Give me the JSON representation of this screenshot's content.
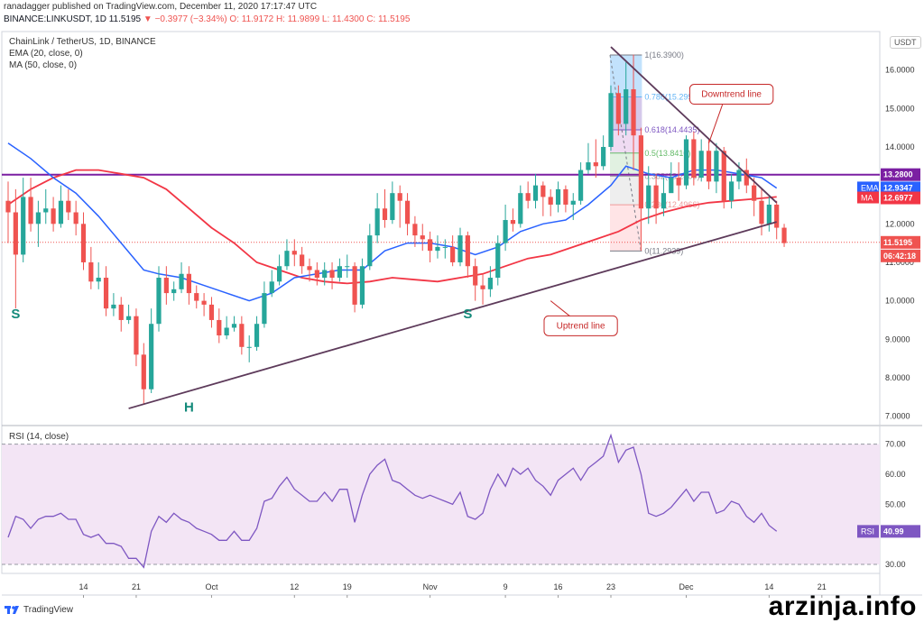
{
  "header": {
    "line1": "ranadagger published on TradingView.com, December 11, 2020 17:17:47 UTC",
    "symbol": "BINANCE:LINKUSDT, 1D",
    "price": "11.5195",
    "change": "−0.3977 (−3.34%)",
    "ohlc": "O: 11.9172 H: 11.9899 L: 11.4300 C: 11.5195"
  },
  "legend": {
    "title": "ChainLink / TetherUS, 1D, BINANCE",
    "ema": "EMA (20, close, 0)",
    "ma": "MA (50, close, 0)",
    "rsi": "RSI (14, close)"
  },
  "currency_button": "USDT",
  "brand": "TradingView",
  "watermark": "arzinja.info",
  "colors": {
    "up": "#26a69a",
    "down": "#ef5350",
    "ema": "#2962ff",
    "ma": "#f23645",
    "resistance": "#7b1fa2",
    "trendline": "#5d3a5a",
    "rsi": "#7e57c2",
    "rsi_band": "#f3e5f5"
  },
  "chart_data": {
    "type": "candlestick",
    "price_ticks": [
      "16.0000",
      "15.0000",
      "14.0000",
      "13.0000",
      "12.0000",
      "11.0000",
      "10.0000",
      "9.0000",
      "8.0000",
      "7.0000"
    ],
    "price_values": [
      16,
      15,
      14,
      13,
      12,
      11,
      10,
      9,
      8,
      7
    ],
    "ylim": [
      6.85,
      17.0
    ],
    "date_ticks": [
      "14",
      "21",
      "Oct",
      "12",
      "19",
      "Nov",
      "9",
      "16",
      "23",
      "Dec",
      "14",
      "21"
    ],
    "date_index": [
      10,
      17,
      27,
      38,
      45,
      56,
      66,
      73,
      80,
      90,
      101,
      108
    ],
    "xlim": [
      0,
      112
    ],
    "candles": [
      [
        12.6,
        12.3,
        13.1,
        11.5
      ],
      [
        12.3,
        11.2,
        12.9,
        9.8
      ],
      [
        11.2,
        12.7,
        13.2,
        11.0
      ],
      [
        12.7,
        12.0,
        13.2,
        11.8
      ],
      [
        12.0,
        12.3,
        12.6,
        11.4
      ],
      [
        12.3,
        12.4,
        12.9,
        12.0
      ],
      [
        12.4,
        12.0,
        12.7,
        11.8
      ],
      [
        12.0,
        12.6,
        13.0,
        11.9
      ],
      [
        12.6,
        12.3,
        12.9,
        12.1
      ],
      [
        12.3,
        12.0,
        12.6,
        11.7
      ],
      [
        12.0,
        11.0,
        12.3,
        10.8
      ],
      [
        11.0,
        10.5,
        11.4,
        10.3
      ],
      [
        10.5,
        10.6,
        11.0,
        10.3
      ],
      [
        10.6,
        9.8,
        10.9,
        9.6
      ],
      [
        9.8,
        9.9,
        10.2,
        9.6
      ],
      [
        9.9,
        9.5,
        10.1,
        9.2
      ],
      [
        9.5,
        9.6,
        9.9,
        9.4
      ],
      [
        9.6,
        8.6,
        9.8,
        8.3
      ],
      [
        8.6,
        7.7,
        8.9,
        7.3
      ],
      [
        7.7,
        9.4,
        9.8,
        7.6
      ],
      [
        9.4,
        10.6,
        10.9,
        9.2
      ],
      [
        10.6,
        10.2,
        10.9,
        9.9
      ],
      [
        10.2,
        10.3,
        10.5,
        10.0
      ],
      [
        10.3,
        10.7,
        11.0,
        10.2
      ],
      [
        10.7,
        10.2,
        10.9,
        9.9
      ],
      [
        10.2,
        10.0,
        10.4,
        9.8
      ],
      [
        10.0,
        9.9,
        10.2,
        9.6
      ],
      [
        9.9,
        9.5,
        10.1,
        9.3
      ],
      [
        9.5,
        9.1,
        9.8,
        8.9
      ],
      [
        9.1,
        9.3,
        9.6,
        9.0
      ],
      [
        9.3,
        9.4,
        9.6,
        9.2
      ],
      [
        9.4,
        8.8,
        9.6,
        8.6
      ],
      [
        8.8,
        8.8,
        9.1,
        8.4
      ],
      [
        8.8,
        9.4,
        9.6,
        8.7
      ],
      [
        9.4,
        10.2,
        10.5,
        9.3
      ],
      [
        10.2,
        10.5,
        10.8,
        10.1
      ],
      [
        10.5,
        10.9,
        11.2,
        10.4
      ],
      [
        10.9,
        11.3,
        11.6,
        10.8
      ],
      [
        11.3,
        11.2,
        11.6,
        10.9
      ],
      [
        11.2,
        10.9,
        11.4,
        10.7
      ],
      [
        10.9,
        10.8,
        11.1,
        10.5
      ],
      [
        10.8,
        10.6,
        11.0,
        10.4
      ],
      [
        10.6,
        10.8,
        11.0,
        10.4
      ],
      [
        10.8,
        10.6,
        11.0,
        10.3
      ],
      [
        10.6,
        10.9,
        11.1,
        10.5
      ],
      [
        10.9,
        10.9,
        11.2,
        10.6
      ],
      [
        10.9,
        9.9,
        11.0,
        9.7
      ],
      [
        9.9,
        10.9,
        11.1,
        9.8
      ],
      [
        10.9,
        11.7,
        12.0,
        10.8
      ],
      [
        11.7,
        12.4,
        12.8,
        11.5
      ],
      [
        12.4,
        12.1,
        12.9,
        11.9
      ],
      [
        12.1,
        12.8,
        13.1,
        12.0
      ],
      [
        12.8,
        12.6,
        13.0,
        11.9
      ],
      [
        12.6,
        12.0,
        12.8,
        11.7
      ],
      [
        12.0,
        11.7,
        12.2,
        11.4
      ],
      [
        11.7,
        11.6,
        12.0,
        11.3
      ],
      [
        11.6,
        11.3,
        11.8,
        11.0
      ],
      [
        11.3,
        11.4,
        11.7,
        11.1
      ],
      [
        11.4,
        11.4,
        11.6,
        11.1
      ],
      [
        11.4,
        11.0,
        11.7,
        10.9
      ],
      [
        11.0,
        11.7,
        11.9,
        10.9
      ],
      [
        11.7,
        10.9,
        11.8,
        10.6
      ],
      [
        10.9,
        10.4,
        11.1,
        10.0
      ],
      [
        10.4,
        10.3,
        10.7,
        9.9
      ],
      [
        10.3,
        10.6,
        10.9,
        10.1
      ],
      [
        10.6,
        11.5,
        11.7,
        10.4
      ],
      [
        11.5,
        12.1,
        12.5,
        11.3
      ],
      [
        12.1,
        12.0,
        12.4,
        11.8
      ],
      [
        12.0,
        12.8,
        13.0,
        11.9
      ],
      [
        12.8,
        12.6,
        13.1,
        12.4
      ],
      [
        12.6,
        13.0,
        13.3,
        12.4
      ],
      [
        13.0,
        12.7,
        13.1,
        12.2
      ],
      [
        12.7,
        12.5,
        12.9,
        12.2
      ],
      [
        12.5,
        12.9,
        13.1,
        12.3
      ],
      [
        12.9,
        12.5,
        13.0,
        12.3
      ],
      [
        12.5,
        12.6,
        12.8,
        12.1
      ],
      [
        12.6,
        13.4,
        13.6,
        12.5
      ],
      [
        13.4,
        13.6,
        14.1,
        13.3
      ],
      [
        13.6,
        13.5,
        14.2,
        13.2
      ],
      [
        13.5,
        14.0,
        14.3,
        13.4
      ],
      [
        14.0,
        15.4,
        15.6,
        13.9
      ],
      [
        15.4,
        14.6,
        15.6,
        14.3
      ],
      [
        14.6,
        15.5,
        16.2,
        14.3
      ],
      [
        15.5,
        14.3,
        16.4,
        13.4
      ],
      [
        14.3,
        12.4,
        14.5,
        11.3
      ],
      [
        12.4,
        13.0,
        13.5,
        12.0
      ],
      [
        13.0,
        12.4,
        13.3,
        12.0
      ],
      [
        12.4,
        12.8,
        13.2,
        12.2
      ],
      [
        12.8,
        13.2,
        13.6,
        12.9
      ],
      [
        13.2,
        13.0,
        13.6,
        12.6
      ],
      [
        13.0,
        14.2,
        14.3,
        12.9
      ],
      [
        14.2,
        13.2,
        14.4,
        13.0
      ],
      [
        13.2,
        13.9,
        14.2,
        13.1
      ],
      [
        13.9,
        13.1,
        14.2,
        12.9
      ],
      [
        13.1,
        13.9,
        14.1,
        12.8
      ],
      [
        13.9,
        12.6,
        14.0,
        12.4
      ],
      [
        12.6,
        13.1,
        13.3,
        12.4
      ],
      [
        13.1,
        13.4,
        13.6,
        12.9
      ],
      [
        13.4,
        13.0,
        13.7,
        12.8
      ],
      [
        13.0,
        12.6,
        13.2,
        12.2
      ],
      [
        12.6,
        12.0,
        12.9,
        11.7
      ],
      [
        12.0,
        12.5,
        12.7,
        11.8
      ],
      [
        12.5,
        11.9,
        12.6,
        11.6
      ],
      [
        11.9,
        11.5,
        12.0,
        11.4
      ]
    ],
    "ema20": [
      [
        0,
        14.1
      ],
      [
        3,
        13.7
      ],
      [
        6,
        13.2
      ],
      [
        9,
        12.8
      ],
      [
        12,
        12.2
      ],
      [
        15,
        11.5
      ],
      [
        18,
        10.8
      ],
      [
        20,
        10.7
      ],
      [
        23,
        10.6
      ],
      [
        26,
        10.4
      ],
      [
        29,
        10.2
      ],
      [
        32,
        10.0
      ],
      [
        35,
        10.2
      ],
      [
        38,
        10.6
      ],
      [
        41,
        10.7
      ],
      [
        44,
        10.8
      ],
      [
        47,
        10.8
      ],
      [
        50,
        11.3
      ],
      [
        53,
        11.5
      ],
      [
        56,
        11.5
      ],
      [
        59,
        11.4
      ],
      [
        62,
        11.2
      ],
      [
        65,
        11.4
      ],
      [
        68,
        11.8
      ],
      [
        71,
        12.0
      ],
      [
        74,
        12.1
      ],
      [
        77,
        12.5
      ],
      [
        80,
        13.0
      ],
      [
        82,
        13.5
      ],
      [
        85,
        13.3
      ],
      [
        88,
        13.2
      ],
      [
        91,
        13.4
      ],
      [
        94,
        13.4
      ],
      [
        97,
        13.3
      ],
      [
        100,
        13.2
      ],
      [
        102,
        12.93
      ]
    ],
    "ma50": [
      [
        0,
        12.5
      ],
      [
        3,
        12.9
      ],
      [
        6,
        13.2
      ],
      [
        9,
        13.4
      ],
      [
        12,
        13.4
      ],
      [
        15,
        13.3
      ],
      [
        18,
        13.2
      ],
      [
        21,
        12.9
      ],
      [
        24,
        12.4
      ],
      [
        27,
        11.9
      ],
      [
        30,
        11.5
      ],
      [
        33,
        11.0
      ],
      [
        36,
        10.8
      ],
      [
        39,
        10.6
      ],
      [
        42,
        10.5
      ],
      [
        45,
        10.45
      ],
      [
        48,
        10.5
      ],
      [
        51,
        10.6
      ],
      [
        54,
        10.55
      ],
      [
        57,
        10.5
      ],
      [
        60,
        10.6
      ],
      [
        63,
        10.7
      ],
      [
        66,
        10.9
      ],
      [
        69,
        11.1
      ],
      [
        72,
        11.2
      ],
      [
        75,
        11.4
      ],
      [
        78,
        11.6
      ],
      [
        81,
        11.8
      ],
      [
        84,
        12.1
      ],
      [
        87,
        12.3
      ],
      [
        90,
        12.45
      ],
      [
        93,
        12.55
      ],
      [
        96,
        12.6
      ],
      [
        99,
        12.65
      ],
      [
        102,
        12.7
      ]
    ],
    "last_price": 11.5195,
    "ema_last": 12.9347,
    "ma_last": 12.6977,
    "resistance": 13.28,
    "price_labels": {
      "resistance": "13.2800",
      "ema_tag": "EMA",
      "ema": "12.9347",
      "ma_tag": "MA",
      "ma": "12.6977",
      "price": "11.5195",
      "countdown": "06:42:18"
    },
    "fib": {
      "range_index": [
        80,
        84
      ],
      "levels": [
        {
          "label": "1(16.3900)",
          "value": 16.39,
          "color": "#787b86"
        },
        {
          "label": "0.786(15.2994)",
          "value": 15.2994,
          "color": "#64b5f6"
        },
        {
          "label": "0.618(14.4435)",
          "value": 14.4435,
          "color": "#7e57c2"
        },
        {
          "label": "0.5(13.8410)",
          "value": 13.841,
          "color": "#66bb6a"
        },
        {
          "label": "0.382(13.2400)",
          "value": 13.24,
          "color": "#9e9e9e"
        },
        {
          "label": "0.236(12.4966)",
          "value": 12.4966,
          "color": "#ef9a9a"
        },
        {
          "label": "0(11.2939)",
          "value": 11.2939,
          "color": "#787b86"
        }
      ]
    },
    "trendlines": {
      "uptrend": {
        "from": [
          16,
          7.2
        ],
        "to": [
          102,
          12.05
        ]
      },
      "downtrend": {
        "from": [
          80,
          16.6
        ],
        "to": [
          102,
          12.55
        ]
      }
    },
    "annotations": [
      {
        "text": "Downtrend line",
        "type": "box",
        "idx": 96,
        "val": 15.37
      },
      {
        "text": "Uptrend line",
        "type": "box",
        "idx": 76,
        "val": 9.35
      },
      {
        "text": "S",
        "type": "pattern",
        "idx": 1,
        "val": 9.55
      },
      {
        "text": "H",
        "type": "pattern",
        "idx": 24,
        "val": 7.12
      },
      {
        "text": "S",
        "type": "pattern",
        "idx": 61,
        "val": 9.55
      }
    ],
    "rsi": {
      "ylim": [
        27,
        75
      ],
      "ticks": [
        "70.00",
        "60.00",
        "50.00",
        "40.00",
        "30.00"
      ],
      "tick_values": [
        70,
        60,
        50,
        40,
        30
      ],
      "band": [
        30,
        70
      ],
      "last": 40.99,
      "last_label": "RSI",
      "last_value": "40.99",
      "values": [
        [
          0,
          39
        ],
        [
          1,
          46
        ],
        [
          2,
          45
        ],
        [
          3,
          42
        ],
        [
          4,
          45
        ],
        [
          5,
          46
        ],
        [
          6,
          46
        ],
        [
          7,
          47
        ],
        [
          8,
          45
        ],
        [
          9,
          45
        ],
        [
          10,
          40
        ],
        [
          11,
          39
        ],
        [
          12,
          40
        ],
        [
          13,
          37
        ],
        [
          14,
          37
        ],
        [
          15,
          36
        ],
        [
          16,
          32
        ],
        [
          17,
          32
        ],
        [
          18,
          29
        ],
        [
          19,
          41
        ],
        [
          20,
          46
        ],
        [
          21,
          44
        ],
        [
          22,
          47
        ],
        [
          23,
          45
        ],
        [
          24,
          44
        ],
        [
          25,
          42
        ],
        [
          26,
          41
        ],
        [
          27,
          40
        ],
        [
          28,
          38
        ],
        [
          29,
          38
        ],
        [
          30,
          41
        ],
        [
          31,
          38
        ],
        [
          32,
          38
        ],
        [
          33,
          42
        ],
        [
          34,
          51
        ],
        [
          35,
          52
        ],
        [
          36,
          56
        ],
        [
          37,
          59
        ],
        [
          38,
          55
        ],
        [
          39,
          53
        ],
        [
          40,
          51
        ],
        [
          41,
          51
        ],
        [
          42,
          54
        ],
        [
          43,
          51
        ],
        [
          44,
          55
        ],
        [
          45,
          55
        ],
        [
          46,
          44
        ],
        [
          47,
          53
        ],
        [
          48,
          60
        ],
        [
          49,
          63
        ],
        [
          50,
          65
        ],
        [
          51,
          58
        ],
        [
          52,
          57
        ],
        [
          53,
          55
        ],
        [
          54,
          53
        ],
        [
          55,
          52
        ],
        [
          56,
          53
        ],
        [
          57,
          52
        ],
        [
          58,
          51
        ],
        [
          59,
          50
        ],
        [
          60,
          54
        ],
        [
          61,
          46
        ],
        [
          62,
          45
        ],
        [
          63,
          47
        ],
        [
          64,
          55
        ],
        [
          65,
          60
        ],
        [
          66,
          56
        ],
        [
          67,
          62
        ],
        [
          68,
          60
        ],
        [
          69,
          62
        ],
        [
          70,
          58
        ],
        [
          71,
          56
        ],
        [
          72,
          53
        ],
        [
          73,
          58
        ],
        [
          74,
          60
        ],
        [
          75,
          62
        ],
        [
          76,
          58
        ],
        [
          77,
          62
        ],
        [
          78,
          64
        ],
        [
          79,
          66
        ],
        [
          80,
          73
        ],
        [
          81,
          64
        ],
        [
          82,
          68
        ],
        [
          83,
          69
        ],
        [
          84,
          60
        ],
        [
          85,
          47
        ],
        [
          86,
          46
        ],
        [
          87,
          47
        ],
        [
          88,
          49
        ],
        [
          89,
          52
        ],
        [
          90,
          55
        ],
        [
          91,
          51
        ],
        [
          92,
          54
        ],
        [
          93,
          54
        ],
        [
          94,
          47
        ],
        [
          95,
          48
        ],
        [
          96,
          51
        ],
        [
          97,
          50
        ],
        [
          98,
          46
        ],
        [
          99,
          44
        ],
        [
          100,
          47
        ],
        [
          101,
          43
        ],
        [
          102,
          41
        ]
      ]
    }
  }
}
